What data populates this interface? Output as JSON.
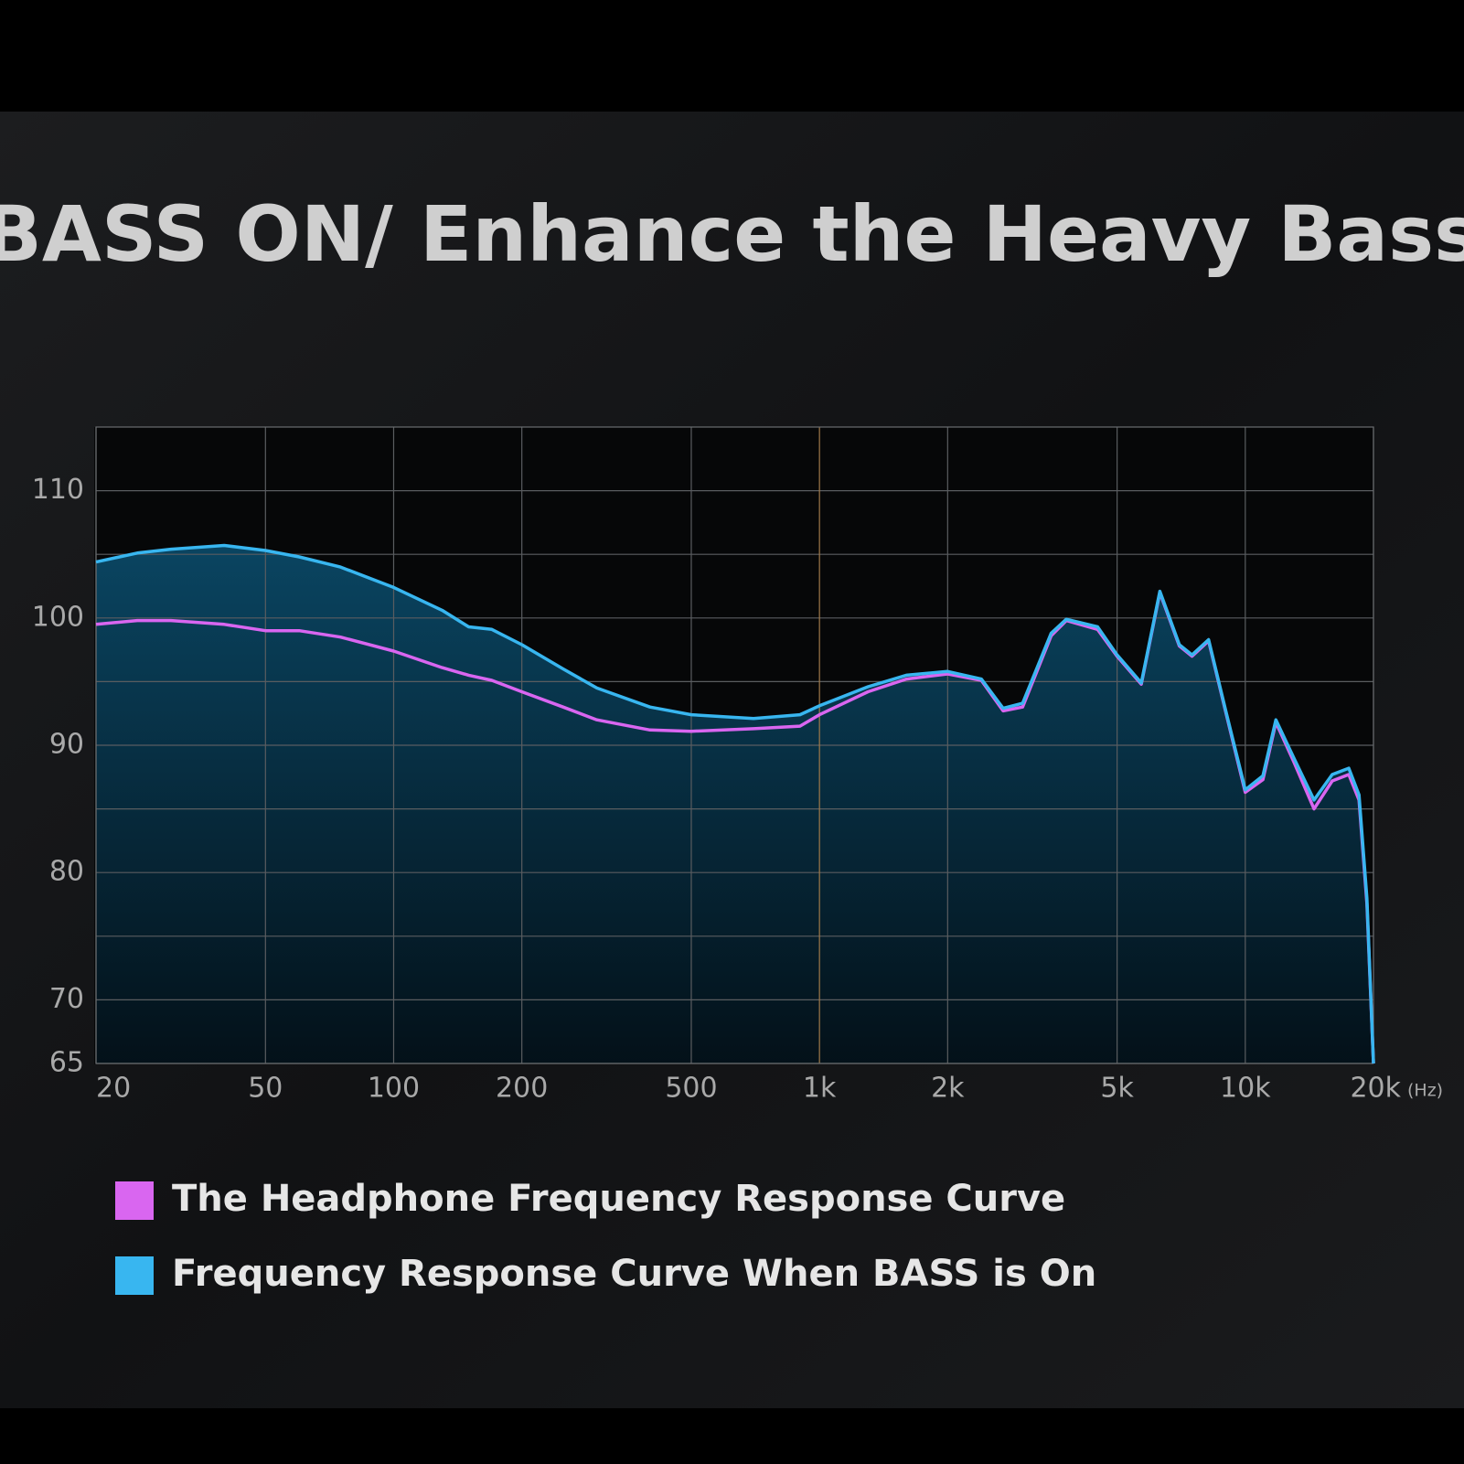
{
  "chart_data": {
    "type": "line",
    "title": "BASS ON/ Enhance the Heavy Bass",
    "x_unit": "(Hz)",
    "xscale": "log",
    "xlim": [
      20,
      20000
    ],
    "xticks": [
      20,
      50,
      100,
      200,
      500,
      {
        "value": 1000,
        "label": "1k"
      },
      {
        "value": 2000,
        "label": "2k"
      },
      {
        "value": 5000,
        "label": "5k"
      },
      {
        "value": 10000,
        "label": "10k"
      },
      {
        "value": 20000,
        "label": "20k"
      }
    ],
    "ylim": [
      65,
      115
    ],
    "yticks": [
      65,
      70,
      80,
      90,
      100,
      110
    ],
    "y_minor_grid": [
      75,
      85,
      95,
      105
    ],
    "grid": true,
    "x": [
      20,
      25,
      30,
      40,
      50,
      60,
      75,
      100,
      130,
      150,
      170,
      200,
      250,
      300,
      400,
      500,
      700,
      900,
      1000,
      1300,
      1600,
      2000,
      2400,
      2700,
      3000,
      3500,
      3800,
      4500,
      5000,
      5700,
      6300,
      7000,
      7500,
      8200,
      9000,
      10000,
      11000,
      11800,
      13000,
      14500,
      16000,
      17500,
      18500,
      19300,
      20000
    ],
    "series": [
      {
        "name": "The Headphone Frequency Response Curve",
        "color": "#d966f0",
        "values": [
          99.5,
          99.8,
          99.8,
          99.5,
          99.0,
          99.0,
          98.5,
          97.4,
          96.1,
          95.5,
          95.1,
          94.2,
          93.0,
          92.0,
          91.2,
          91.1,
          91.3,
          91.5,
          92.4,
          94.2,
          95.2,
          95.6,
          95.1,
          92.7,
          93.0,
          98.6,
          99.8,
          99.1,
          97.0,
          94.8,
          102.0,
          97.8,
          97.0,
          98.2,
          92.6,
          86.3,
          87.3,
          91.8,
          88.7,
          85.0,
          87.2,
          87.7,
          85.7,
          77.6,
          65
        ]
      },
      {
        "name": "Frequency Response Curve When BASS is On",
        "color": "#38b6f0",
        "values": [
          104.4,
          105.1,
          105.4,
          105.7,
          105.3,
          104.8,
          104.0,
          102.4,
          100.6,
          99.3,
          99.1,
          97.9,
          96.0,
          94.5,
          93.0,
          92.4,
          92.1,
          92.4,
          93.1,
          94.6,
          95.5,
          95.8,
          95.2,
          92.9,
          93.3,
          98.8,
          99.9,
          99.3,
          97.1,
          94.9,
          102.1,
          97.9,
          97.1,
          98.3,
          92.7,
          86.5,
          87.6,
          92.0,
          89.0,
          85.7,
          87.7,
          88.2,
          86.1,
          78.0,
          65
        ]
      }
    ]
  }
}
